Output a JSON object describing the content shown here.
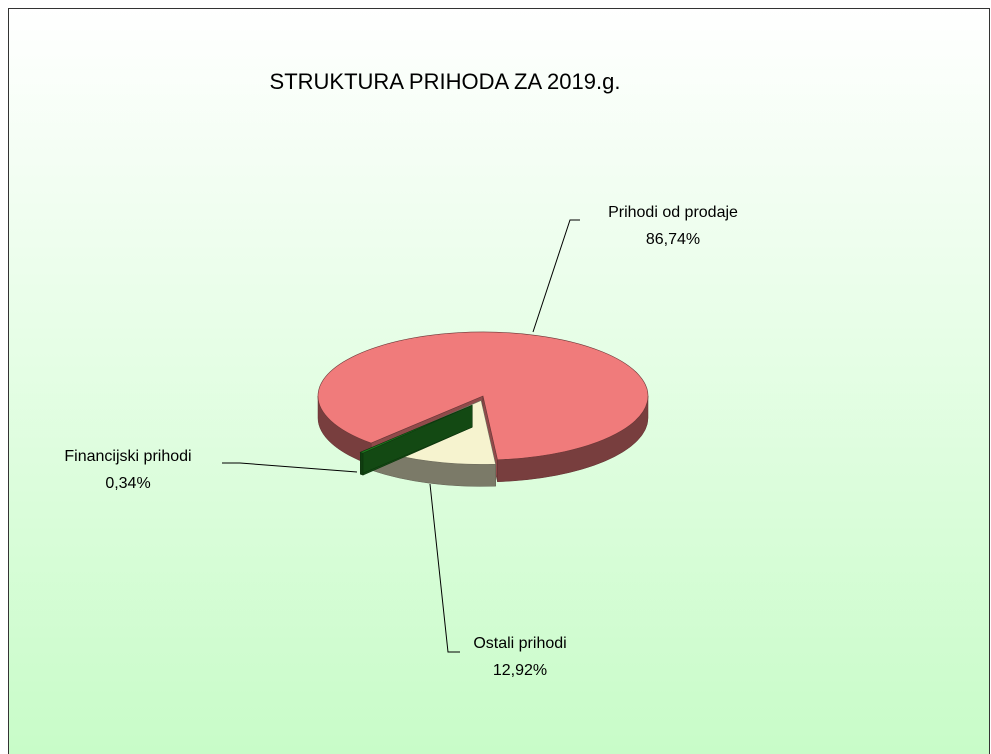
{
  "chart_data": {
    "type": "pie",
    "title": "STRUKTURA PRIHODA ZA 2019.g.",
    "categories": [
      "Prihodi od prodaje",
      "Ostali prihodi",
      "Financijski prihodi"
    ],
    "values": [
      86.74,
      12.92,
      0.34
    ],
    "value_labels": [
      "86,74%",
      "12,92%",
      "0,34%"
    ],
    "colors": [
      "#f07b7b",
      "#f6f3cf",
      "#1f7a1f"
    ]
  }
}
